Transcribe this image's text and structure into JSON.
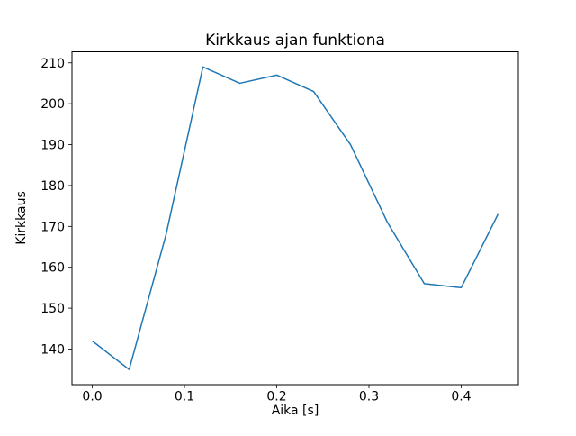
{
  "chart_data": {
    "type": "line",
    "title": "Kirkkaus ajan funktiona",
    "xlabel": "Aika [s]",
    "ylabel": "Kirkkaus",
    "x": [
      0.0,
      0.04,
      0.08,
      0.12,
      0.16,
      0.2,
      0.24,
      0.28,
      0.32,
      0.36,
      0.4,
      0.44
    ],
    "y": [
      142,
      135,
      168,
      209,
      205,
      207,
      203,
      190,
      171,
      156,
      155,
      173
    ],
    "xlim": [
      -0.022,
      0.462
    ],
    "ylim": [
      131.3,
      212.7
    ],
    "xticks": {
      "values": [
        0.0,
        0.1,
        0.2,
        0.3,
        0.4
      ],
      "labels": [
        "0.0",
        "0.1",
        "0.2",
        "0.3",
        "0.4"
      ]
    },
    "yticks": {
      "values": [
        140,
        150,
        160,
        170,
        180,
        190,
        200,
        210
      ],
      "labels": [
        "140",
        "150",
        "160",
        "170",
        "180",
        "190",
        "200",
        "210"
      ]
    },
    "grid": false,
    "legend": "none",
    "line_color": "#1f77b4",
    "line_width": 1.5,
    "axes_color": "#000000",
    "background_color": "#ffffff"
  }
}
